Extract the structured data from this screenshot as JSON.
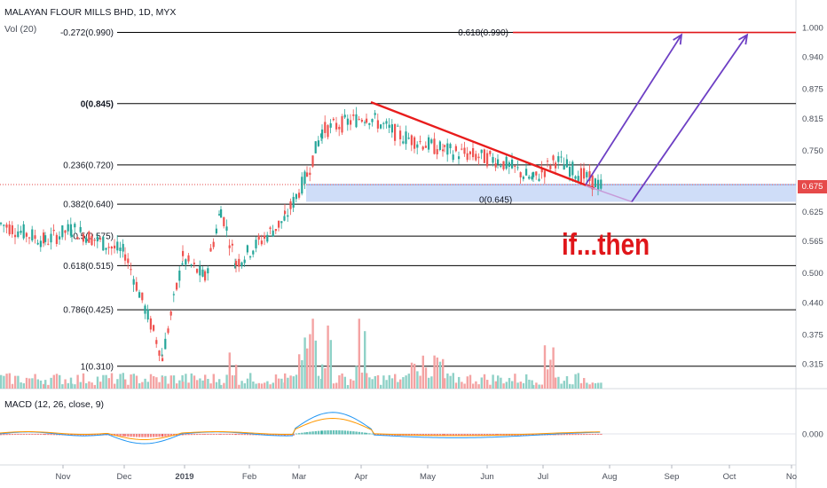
{
  "header": {
    "symbol_line": "MALAYAN FLOUR MILLS BHD, 1D, MYX",
    "volume_label": "Vol (20)"
  },
  "macd_label": "MACD (12, 26, close, 9)",
  "annotation_text": "if...then",
  "last_price": "0.675",
  "colors": {
    "up": "#26a69a",
    "down": "#ef5350",
    "up_volume": "#8fd1c7",
    "down_volume": "#f4a3a3",
    "trendline": "#e81c1c",
    "projection": "#6d3fc4",
    "zone_fill": "#c7d7f7",
    "fib_line": "#000000",
    "target_line": "#e0161a",
    "macd_line": "#2196f3",
    "signal_line": "#ff9800"
  },
  "chart_data": {
    "type": "candlestick",
    "title": "MALAYAN FLOUR MILLS BHD, 1D, MYX",
    "x_tick_labels": [
      "Nov",
      "Dec",
      "2019",
      "Feb",
      "Mar",
      "Apr",
      "May",
      "Jun",
      "Jul",
      "Aug",
      "Sep",
      "Oct",
      "No"
    ],
    "y_tick_labels": [
      "1.000",
      "0.940",
      "0.875",
      "0.815",
      "0.750",
      "0.675",
      "0.625",
      "0.565",
      "0.500",
      "0.440",
      "0.375",
      "0.315"
    ],
    "y_range": [
      0.29,
      1.02
    ],
    "macd_tick_label": "0.000",
    "fib_levels": [
      {
        "label": "-0.272(0.990)",
        "price": 0.99
      },
      {
        "label": "0(0.845)",
        "price": 0.845
      },
      {
        "label": "0.236(0.720)",
        "price": 0.72
      },
      {
        "label": "0.382(0.640)",
        "price": 0.64
      },
      {
        "label": "0.5(0.575)",
        "price": 0.575
      },
      {
        "label": "0.618(0.515)",
        "price": 0.515
      },
      {
        "label": "0.786(0.425)",
        "price": 0.425
      },
      {
        "label": "1(0.310)",
        "price": 0.31
      }
    ],
    "target_level": {
      "label": "0.618(0.990)",
      "price": 0.99
    },
    "zone_label": "0(0.645)",
    "support_zone": {
      "low": 0.645,
      "high": 0.68
    },
    "trendline": {
      "from": [
        "Apr",
        0.845
      ],
      "to": [
        "Jul",
        0.67
      ]
    },
    "projections": [
      {
        "from": [
          "Jul",
          0.675
        ],
        "to": [
          "Sep",
          0.985
        ]
      },
      {
        "from": [
          "Aug",
          0.645
        ],
        "to": [
          "Oct",
          0.985
        ]
      }
    ],
    "price_path": [
      [
        "Oct",
        0.6
      ],
      [
        "Nov",
        0.565
      ],
      [
        "Nov",
        0.59
      ],
      [
        "Dec",
        0.54
      ],
      [
        "Dec",
        0.33
      ],
      [
        "2019",
        0.53
      ],
      [
        "2019",
        0.49
      ],
      [
        "Feb",
        0.63
      ],
      [
        "Feb",
        0.52
      ],
      [
        "Mar",
        0.61
      ],
      [
        "Mar",
        0.7
      ],
      [
        "Mar",
        0.79
      ],
      [
        "Apr",
        0.82
      ],
      [
        "Apr",
        0.78
      ],
      [
        "May",
        0.75
      ],
      [
        "Jun",
        0.73
      ],
      [
        "Jul",
        0.69
      ],
      [
        "Jul",
        0.73
      ],
      [
        "Jul",
        0.675
      ]
    ]
  }
}
